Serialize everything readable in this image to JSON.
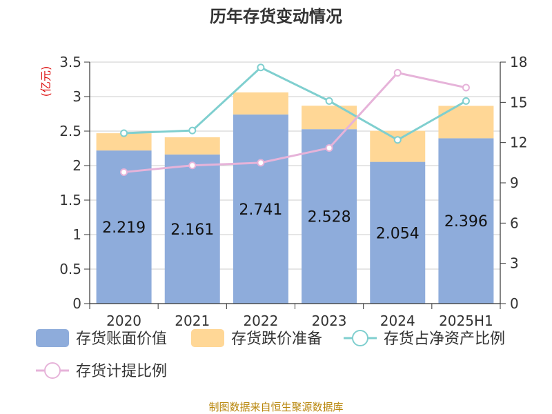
{
  "title": "历年存货变动情况",
  "footer": "制图数据来自恒生聚源数据库",
  "colors": {
    "book_value": "#8eacdb",
    "provision": "#ffd796",
    "ratio_net_assets": "#7fcfcf",
    "provision_ratio": "#e6b3d9",
    "unit_red": "#dd1111",
    "footer": "#b8860b"
  },
  "chart_data": {
    "type": "bar",
    "title": "历年存货变动情况",
    "categories": [
      "2020",
      "2021",
      "2022",
      "2023",
      "2024",
      "2025H1"
    ],
    "left_axis": {
      "unit_label": "(亿元)",
      "ticks": [
        "0",
        "0.5",
        "1",
        "1.5",
        "2",
        "2.5",
        "3",
        "3.5"
      ],
      "ylim": [
        0,
        3.5
      ]
    },
    "right_axis": {
      "ticks": [
        "0",
        "3",
        "6",
        "9",
        "12",
        "15",
        "18"
      ],
      "ylim": [
        0,
        18
      ]
    },
    "grid": true,
    "legend_position": "bottom",
    "series": [
      {
        "name": "存货账面价值",
        "kind": "bar",
        "axis": "left",
        "stacked": true,
        "values": [
          2.219,
          2.161,
          2.741,
          2.528,
          2.054,
          2.396
        ],
        "labels": [
          "2.219",
          "2.161",
          "2.741",
          "2.528",
          "2.054",
          "2.396"
        ]
      },
      {
        "name": "存货跌价准备",
        "kind": "bar",
        "axis": "left",
        "stacked": true,
        "values": [
          0.25,
          0.25,
          0.32,
          0.34,
          0.45,
          0.47
        ]
      },
      {
        "name": "存货占净资产比例",
        "kind": "line",
        "axis": "right",
        "values": [
          12.7,
          12.9,
          17.6,
          15.1,
          12.2,
          15.1
        ]
      },
      {
        "name": "存货计提比例",
        "kind": "line",
        "axis": "right",
        "values": [
          9.8,
          10.3,
          10.5,
          11.6,
          17.2,
          16.1
        ]
      }
    ]
  }
}
